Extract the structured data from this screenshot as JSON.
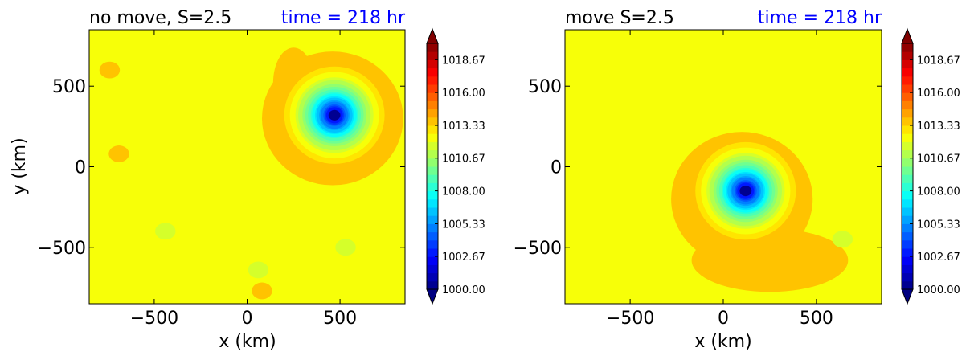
{
  "chart_data": [
    {
      "type": "heatmap",
      "title": "no move, S=2.5",
      "time_label": "time = 218 hr",
      "xlabel": "x (km)",
      "ylabel": "y (km)",
      "xlim": [
        -850,
        850
      ],
      "ylim": [
        -850,
        850
      ],
      "xticks": [
        -500,
        0,
        500
      ],
      "yticks": [
        -500,
        0,
        500
      ],
      "xtick_labels": [
        "−500",
        "0",
        "500"
      ],
      "ytick_labels": [
        "−500",
        "0",
        "500"
      ],
      "background_pressure": 1012.5,
      "vortex_center": [
        470,
        320
      ],
      "vortex_min_pressure": 1000.0,
      "features": [
        {
          "kind": "ring-ridge",
          "x": 460,
          "y": 300,
          "value": 1013.5
        },
        {
          "kind": "band",
          "x": 250,
          "y": 520,
          "value": 1013.5
        },
        {
          "kind": "blob",
          "x": -740,
          "y": 600,
          "value": 1013.5
        },
        {
          "kind": "blob",
          "x": -690,
          "y": 80,
          "value": 1013.5
        },
        {
          "kind": "blob",
          "x": -440,
          "y": -400,
          "value": 1011.5
        },
        {
          "kind": "blob",
          "x": 60,
          "y": -640,
          "value": 1011.5
        },
        {
          "kind": "blob",
          "x": 530,
          "y": -500,
          "value": 1011.5
        },
        {
          "kind": "blob",
          "x": 80,
          "y": -770,
          "value": 1013.5
        }
      ]
    },
    {
      "type": "heatmap",
      "title": "move S=2.5",
      "time_label": "time = 218 hr",
      "xlabel": "x (km)",
      "ylabel": "",
      "xlim": [
        -850,
        850
      ],
      "ylim": [
        -850,
        850
      ],
      "xticks": [
        -500,
        0,
        500
      ],
      "yticks": [
        -500,
        0,
        500
      ],
      "xtick_labels": [
        "−500",
        "0",
        "500"
      ],
      "ytick_labels": [
        "−500",
        "0",
        "500"
      ],
      "background_pressure": 1012.5,
      "vortex_center": [
        120,
        -150
      ],
      "vortex_min_pressure": 1000.0,
      "features": [
        {
          "kind": "ring-ridge",
          "x": 100,
          "y": -200,
          "value": 1013.5
        },
        {
          "kind": "tail",
          "x": 250,
          "y": -580,
          "value": 1013.5
        },
        {
          "kind": "blob",
          "x": 640,
          "y": -450,
          "value": 1011.5
        }
      ]
    }
  ],
  "colorbar": {
    "min": 1000.0,
    "max": 1020.0,
    "levels": 30,
    "tick_values": [
      1000.0,
      1002.67,
      1005.33,
      1008.0,
      1010.67,
      1013.33,
      1016.0,
      1018.67
    ],
    "tick_labels": [
      "1000.00",
      "1002.67",
      "1005.33",
      "1008.00",
      "1010.67",
      "1013.33",
      "1016.00",
      "1018.67"
    ],
    "colormap": "jet",
    "extend": "both"
  },
  "colors": {
    "title_time": "#0000ff",
    "title_main": "#000000"
  }
}
